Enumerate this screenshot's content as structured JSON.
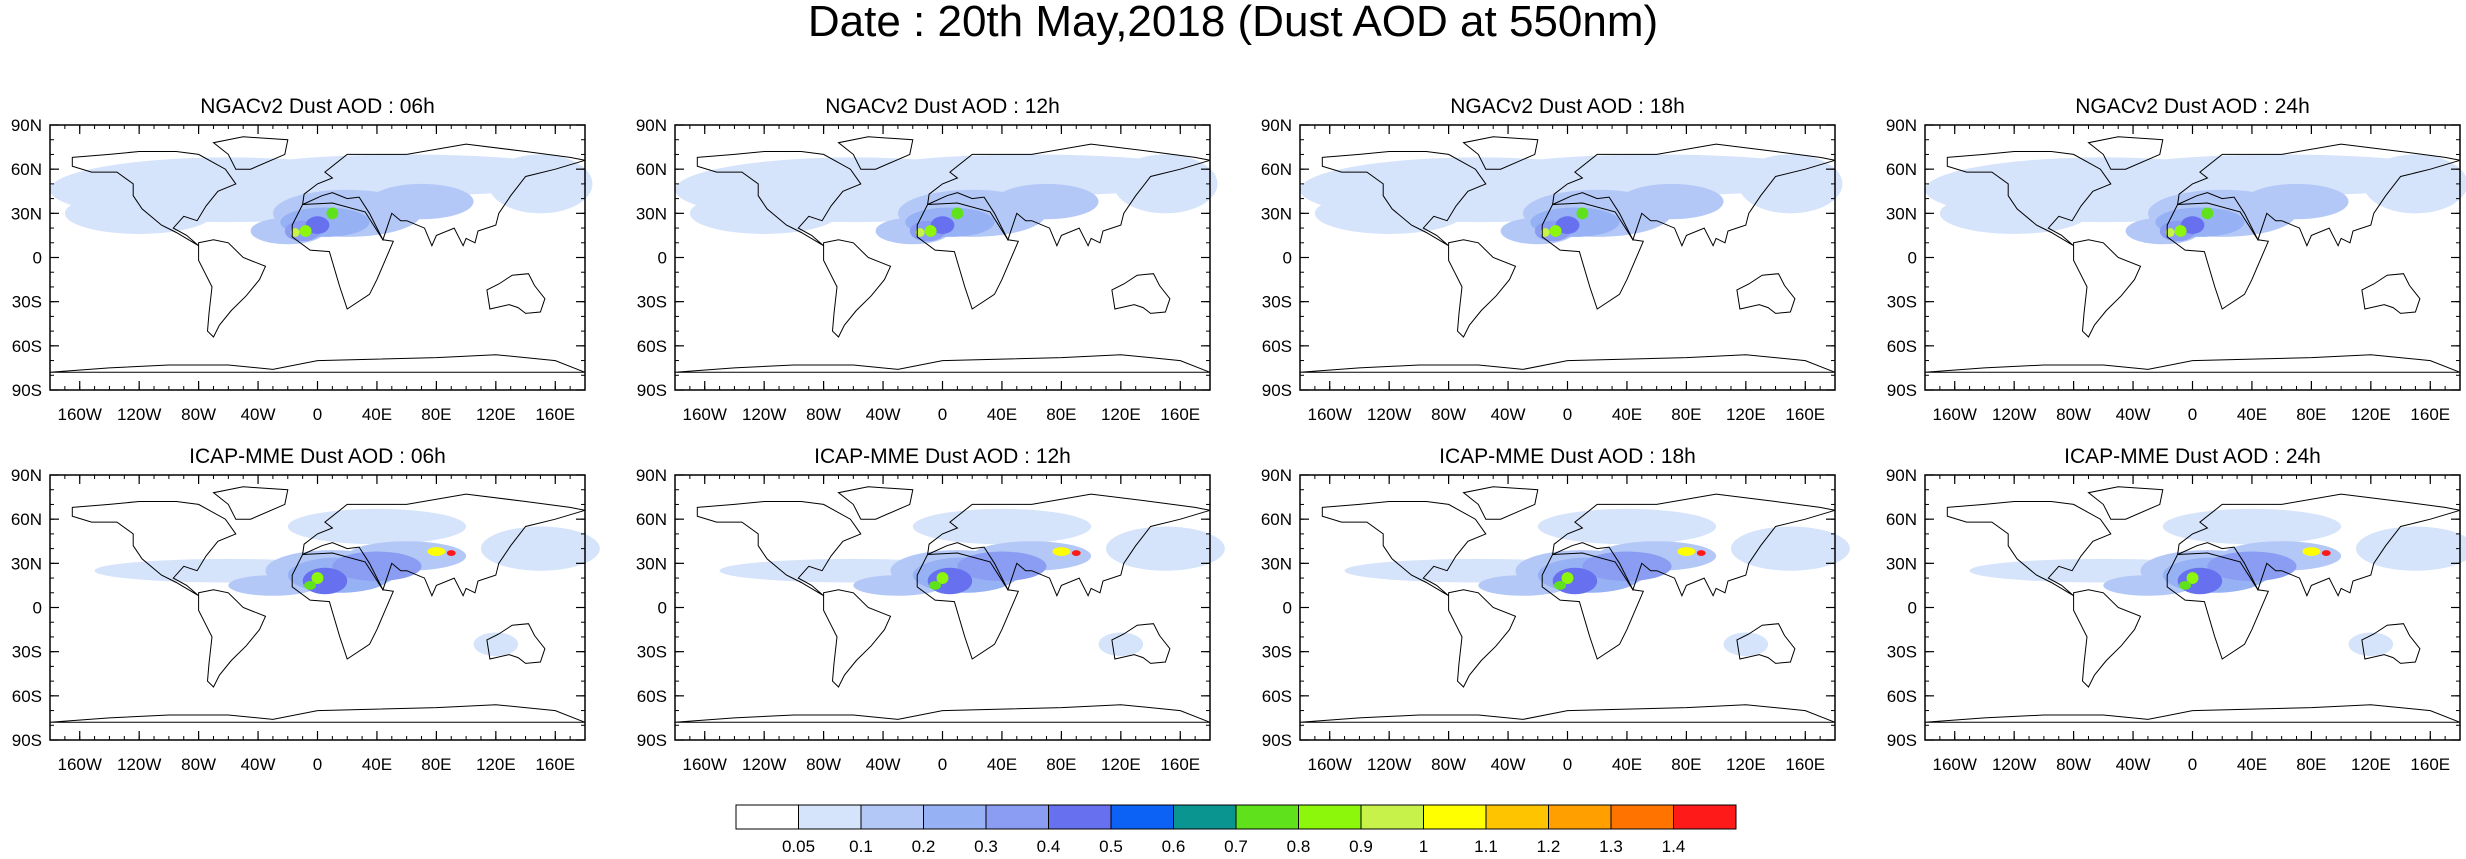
{
  "page_title": "Date : 20th May,2018 (Dust AOD at 550nm)",
  "panels": [
    {
      "title": "NGACv2 Dust AOD : 06h"
    },
    {
      "title": "NGACv2 Dust AOD : 12h"
    },
    {
      "title": "NGACv2 Dust AOD : 18h"
    },
    {
      "title": "NGACv2 Dust AOD : 24h"
    },
    {
      "title": "ICAP-MME Dust AOD : 06h"
    },
    {
      "title": "ICAP-MME Dust AOD : 12h"
    },
    {
      "title": "ICAP-MME Dust AOD : 18h"
    },
    {
      "title": "ICAP-MME Dust AOD : 24h"
    }
  ],
  "axes": {
    "lon_ticks": [
      "160W",
      "120W",
      "80W",
      "40W",
      "0",
      "40E",
      "80E",
      "120E",
      "160E"
    ],
    "lon_values": [
      -160,
      -120,
      -80,
      -40,
      0,
      40,
      80,
      120,
      160
    ],
    "lat_ticks": [
      "90N",
      "60N",
      "30N",
      "0",
      "30S",
      "60S",
      "90S"
    ],
    "lat_values": [
      90,
      60,
      30,
      0,
      -30,
      -60,
      -90
    ]
  },
  "colorbar": {
    "labels": [
      "0.05",
      "0.1",
      "0.2",
      "0.3",
      "0.4",
      "0.5",
      "0.6",
      "0.7",
      "0.8",
      "0.9",
      "1",
      "1.1",
      "1.2",
      "1.3",
      "1.4"
    ],
    "colors": [
      "#ffffff",
      "#d5e3fb",
      "#b3c8f7",
      "#96b2f5",
      "#8a9df2",
      "#6771ef",
      "#0c62f5",
      "#0a9590",
      "#5fe21b",
      "#8cf60b",
      "#c7f24a",
      "#ffff00",
      "#ffc400",
      "#ff9f00",
      "#ff7300",
      "#ff1a1a"
    ]
  }
}
